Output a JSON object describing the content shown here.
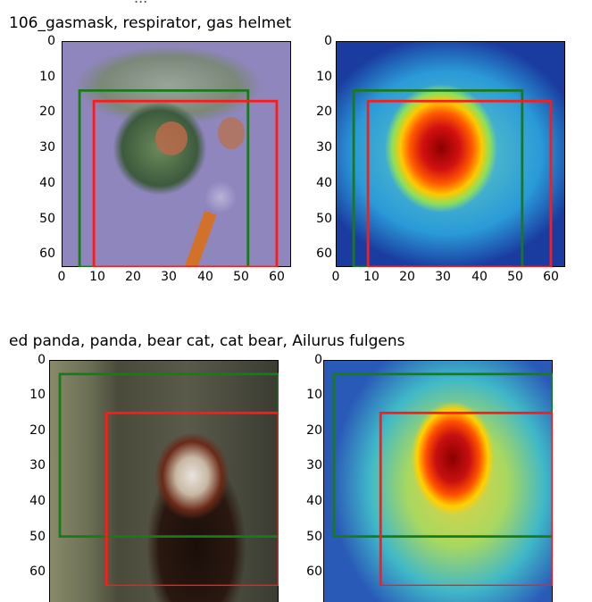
{
  "top_cut_text": "...",
  "figures": [
    {
      "title": "106_gasmask, respirator, gas helmet",
      "yticks": [
        "0",
        "10",
        "20",
        "30",
        "40",
        "50",
        "60"
      ],
      "xticks": [
        "0",
        "10",
        "20",
        "30",
        "40",
        "50",
        "60"
      ],
      "green_box": [
        5,
        14,
        52,
        64
      ],
      "red_box": [
        9,
        17,
        60,
        64
      ]
    },
    {
      "title": "ed panda, panda, bear cat, cat bear, Ailurus fulgens",
      "yticks": [
        "0",
        "10",
        "20",
        "30",
        "40",
        "50",
        "60"
      ],
      "green_box": [
        3,
        4,
        64,
        50
      ],
      "red_box": [
        16,
        15,
        64,
        64
      ]
    }
  ],
  "colors": {
    "green_box": "#1a7a1a",
    "red_box": "#ff1a1a"
  }
}
